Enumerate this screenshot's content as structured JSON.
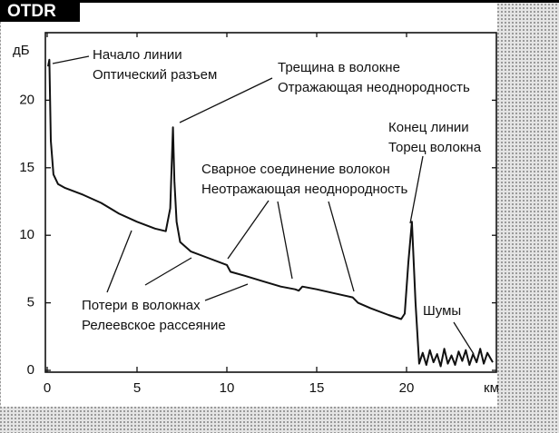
{
  "chart_data": {
    "type": "line",
    "title": "OTDR",
    "y_label": "дБ",
    "x_label": "км",
    "xlim": [
      0,
      25
    ],
    "ylim": [
      0,
      25
    ],
    "xticks": [
      0,
      5,
      10,
      15,
      20
    ],
    "yticks": [
      0,
      5,
      10,
      15,
      20
    ],
    "color": "#111111",
    "x": [
      0.05,
      0.12,
      0.2,
      0.35,
      0.6,
      1,
      2,
      3,
      4,
      5,
      6,
      6.6,
      6.85,
      7.0,
      7.08,
      7.2,
      7.4,
      8,
      9,
      10,
      10.2,
      11,
      12,
      13,
      13.8,
      14.0,
      14.2,
      15,
      16,
      17,
      17.3,
      18,
      19,
      19.7,
      19.9,
      20.1,
      20.3,
      20.5,
      20.7,
      20.9,
      21.1,
      21.3,
      21.5,
      21.7,
      21.9,
      22.1,
      22.3,
      22.5,
      22.7,
      22.9,
      23.1,
      23.3,
      23.5,
      23.7,
      23.9,
      24.1,
      24.3,
      24.5,
      24.8
    ],
    "values": [
      22.5,
      23,
      17,
      14.5,
      13.8,
      13.5,
      13,
      12.4,
      11.6,
      11,
      10.5,
      10.3,
      12,
      18,
      14,
      11,
      9.5,
      8.8,
      8.3,
      7.8,
      7.3,
      7.0,
      6.6,
      6.2,
      6.0,
      5.9,
      6.2,
      6.0,
      5.7,
      5.4,
      5.0,
      4.6,
      4.1,
      3.8,
      4.2,
      8,
      11,
      5,
      0.5,
      1.3,
      0.4,
      1.5,
      0.6,
      1.2,
      0.3,
      1.6,
      0.5,
      1.1,
      0.4,
      1.4,
      0.7,
      1.5,
      0.4,
      1.2,
      0.6,
      1.6,
      0.5,
      1.3,
      0.6
    ],
    "annotations": [
      {
        "lines": [
          "Начало линии",
          "Оптический разъем"
        ]
      },
      {
        "lines": [
          "Трещина в волокне",
          "Отражающая неоднородность"
        ]
      },
      {
        "lines": [
          "Конец линии",
          "Торец волокна"
        ]
      },
      {
        "lines": [
          "Сварное соединение волокон",
          "Неотражающая неоднородность"
        ]
      },
      {
        "lines": [
          "Потери в волокнах",
          "Релеевское рассеяние"
        ]
      },
      {
        "lines": [
          "Шумы"
        ]
      }
    ]
  }
}
